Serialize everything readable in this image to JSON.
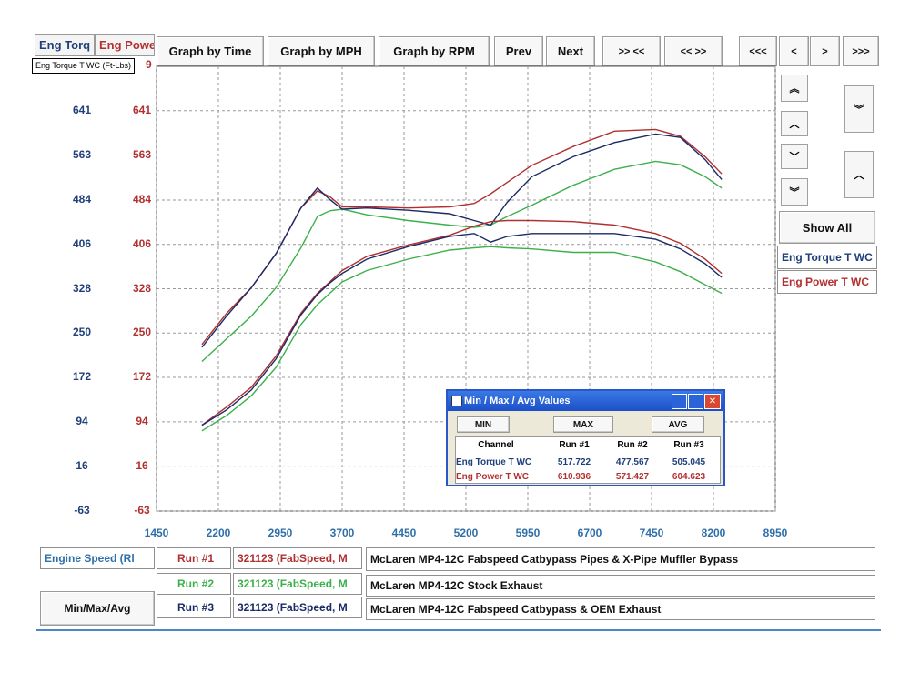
{
  "tabs": {
    "torque": "Eng Torq",
    "power": "Eng Powe"
  },
  "tooltip": "Eng Torque T WC (Ft-Lbs)",
  "tooltip_suffix": "9",
  "toolbar": {
    "graph_time": "Graph by Time",
    "graph_mph": "Graph by MPH",
    "graph_rpm": "Graph by RPM",
    "prev": "Prev",
    "next": "Next",
    "zoom_in": ">> <<",
    "zoom_out": "<< >>",
    "first": "<<<",
    "left": "<",
    "right": ">",
    "last": ">>>"
  },
  "side": {
    "show_all": "Show All",
    "legend_torque": "Eng Torque T WC",
    "legend_power": "Eng Power T WC"
  },
  "y_ticks": [
    "641",
    "563",
    "484",
    "406",
    "328",
    "250",
    "172",
    "94",
    "16",
    "-63"
  ],
  "x_ticks": [
    "1450",
    "2200",
    "2950",
    "3700",
    "4450",
    "5200",
    "5950",
    "6700",
    "7450",
    "8200",
    "8950"
  ],
  "colors": {
    "run1": "#b03030",
    "run2": "#3cb04a",
    "run3": "#1a2a66",
    "torque_axis": "#1f3f7a",
    "power_axis": "#b23030"
  },
  "runs": [
    {
      "label": "Run #1",
      "id": "321123 (FabSpeed, M",
      "desc": "McLaren MP4-12C Fabspeed Catbypass Pipes & X-Pipe Muffler Bypass"
    },
    {
      "label": "Run #2",
      "id": "321123 (FabSpeed, M",
      "desc": "McLaren MP4-12C Stock Exhaust"
    },
    {
      "label": "Run #3",
      "id": "321123 (FabSpeed, M",
      "desc": "McLaren MP4-12C Fabspeed Catbypass & OEM Exhaust"
    }
  ],
  "bottom": {
    "engine_speed": "Engine Speed (Rl",
    "minmax": "Min/Max/Avg"
  },
  "dialog": {
    "title": "Min / Max / Avg Values",
    "min_btn": "MIN",
    "max_btn": "MAX",
    "avg_btn": "AVG",
    "headers": [
      "Channel",
      "Run #1",
      "Run #2",
      "Run #3"
    ],
    "rows": [
      {
        "channel": "Eng Torque T WC",
        "v1": "517.722",
        "v2": "477.567",
        "v3": "505.045"
      },
      {
        "channel": "Eng Power T WC",
        "v1": "610.936",
        "v2": "571.427",
        "v3": "604.623"
      }
    ]
  },
  "chart_data": {
    "type": "line",
    "xlabel": "Engine Speed (Rl",
    "xlim": [
      1450,
      8950
    ],
    "ylim": [
      -63,
      719
    ],
    "grid": true,
    "x": [
      2000,
      2300,
      2600,
      2900,
      3200,
      3400,
      3550,
      3700,
      4000,
      4500,
      5000,
      5300,
      5500,
      5700,
      6000,
      6500,
      7000,
      7500,
      7800,
      8100,
      8300
    ],
    "series": [
      {
        "name": "Run #1",
        "values": [
          230,
          285,
          330,
          390,
          470,
          500,
          490,
          472,
          472,
          470,
          472,
          478,
          495,
          515,
          545,
          578,
          605,
          608,
          596,
          560,
          530
        ],
        "color": "#b03030"
      },
      {
        "name": "Run #2",
        "values": [
          200,
          240,
          280,
          330,
          400,
          455,
          465,
          468,
          458,
          448,
          440,
          436,
          440,
          455,
          475,
          510,
          538,
          552,
          546,
          525,
          505
        ],
        "color": "#3cb04a"
      },
      {
        "name": "Run #3",
        "values": [
          225,
          280,
          330,
          390,
          470,
          505,
          485,
          468,
          470,
          466,
          460,
          448,
          440,
          480,
          525,
          560,
          585,
          600,
          594,
          555,
          520
        ],
        "color": "#1a2a66"
      },
      {
        "name": "Run #1",
        "values": [
          88,
          120,
          155,
          210,
          285,
          320,
          340,
          360,
          385,
          405,
          422,
          438,
          446,
          448,
          448,
          446,
          440,
          425,
          408,
          380,
          355
        ],
        "color": "#b03030"
      },
      {
        "name": "Run #2",
        "values": [
          78,
          105,
          140,
          190,
          265,
          300,
          320,
          340,
          360,
          380,
          396,
          400,
          402,
          400,
          398,
          392,
          392,
          375,
          358,
          335,
          320
        ],
        "color": "#3cb04a"
      },
      {
        "name": "Run #3",
        "values": [
          88,
          115,
          150,
          205,
          282,
          318,
          338,
          355,
          380,
          402,
          420,
          425,
          410,
          420,
          425,
          425,
          425,
          415,
          398,
          372,
          348
        ],
        "color": "#1a2a66"
      }
    ]
  }
}
